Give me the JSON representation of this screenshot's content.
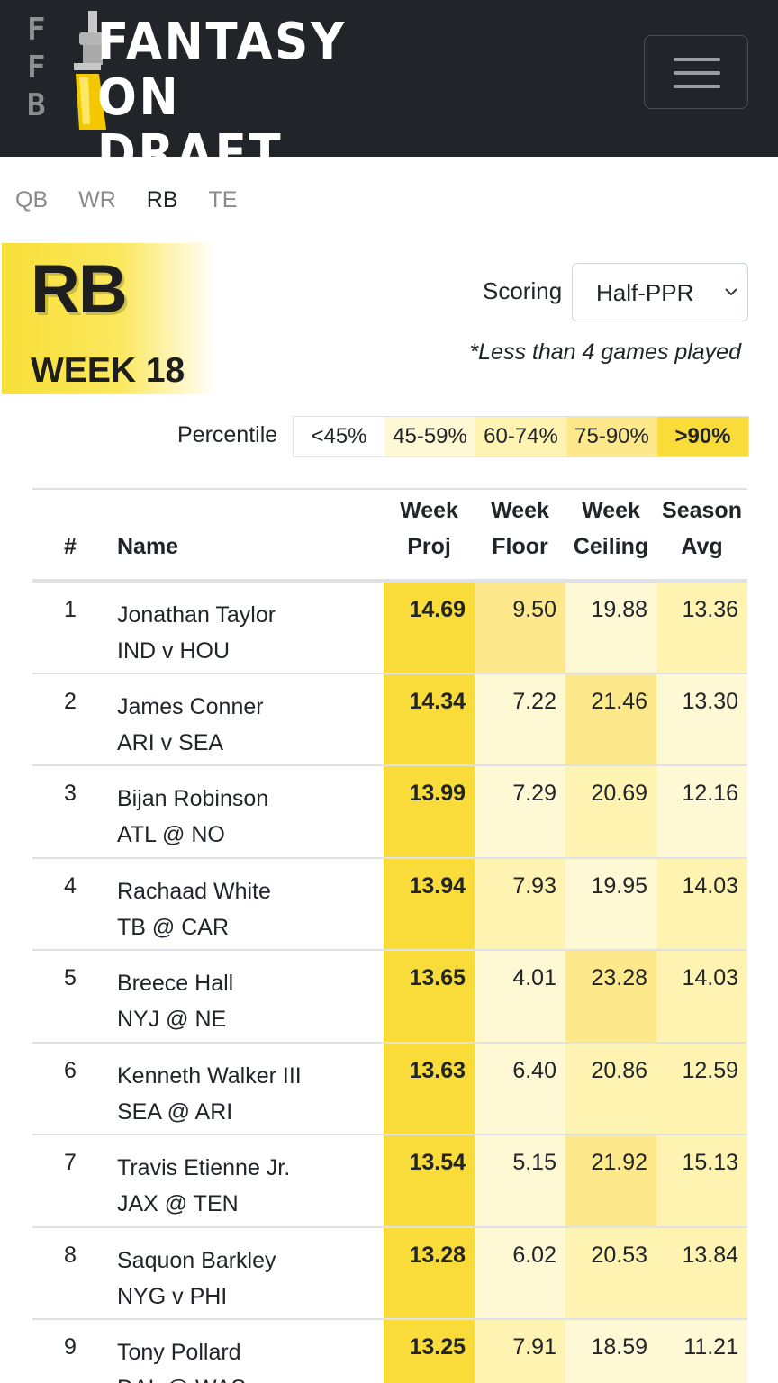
{
  "header": {
    "logo_letters": [
      "F",
      "F",
      "B"
    ],
    "logo_line1": "FANTASY",
    "logo_line2": "ON DRAFT",
    "menu_icon": "hamburger-icon"
  },
  "position_tabs": [
    {
      "label": "QB",
      "active": false
    },
    {
      "label": "WR",
      "active": false
    },
    {
      "label": "RB",
      "active": true
    },
    {
      "label": "TE",
      "active": false
    }
  ],
  "heading": {
    "position": "RB",
    "week": "WEEK 18"
  },
  "scoring": {
    "label": "Scoring",
    "selected": "Half-PPR",
    "icon": "chevron-down-icon"
  },
  "note": "*Less than 4 games played",
  "percentile": {
    "label": "Percentile",
    "bands": [
      "<45%",
      "45-59%",
      "60-74%",
      "75-90%",
      ">90%"
    ],
    "colors": [
      "#ffffff",
      "#fff8d5",
      "#fff3b2",
      "#fde98b",
      "#f9dc3a"
    ]
  },
  "table": {
    "columns": [
      {
        "line1": "",
        "line2": "#"
      },
      {
        "line1": "",
        "line2": "Name"
      },
      {
        "line1": "Week",
        "line2": "Proj"
      },
      {
        "line1": "Week",
        "line2": "Floor"
      },
      {
        "line1": "Week",
        "line2": "Ceiling"
      },
      {
        "line1": "Season",
        "line2": "Avg"
      }
    ],
    "rows": [
      {
        "rank": "1",
        "name": "Jonathan Taylor",
        "matchup": "IND v HOU",
        "proj": "14.69",
        "floor": "9.50",
        "ceiling": "19.88",
        "avg": "13.36",
        "tiers": [
          4,
          3,
          1,
          2
        ]
      },
      {
        "rank": "2",
        "name": "James Conner",
        "matchup": "ARI v SEA",
        "proj": "14.34",
        "floor": "7.22",
        "ceiling": "21.46",
        "avg": "13.30",
        "tiers": [
          4,
          1,
          3,
          1
        ]
      },
      {
        "rank": "3",
        "name": "Bijan Robinson",
        "matchup": "ATL @ NO",
        "proj": "13.99",
        "floor": "7.29",
        "ceiling": "20.69",
        "avg": "12.16",
        "tiers": [
          4,
          1,
          2,
          1
        ]
      },
      {
        "rank": "4",
        "name": "Rachaad White",
        "matchup": "TB @ CAR",
        "proj": "13.94",
        "floor": "7.93",
        "ceiling": "19.95",
        "avg": "14.03",
        "tiers": [
          4,
          2,
          1,
          2
        ]
      },
      {
        "rank": "5",
        "name": "Breece Hall",
        "matchup": "NYJ @ NE",
        "proj": "13.65",
        "floor": "4.01",
        "ceiling": "23.28",
        "avg": "14.03",
        "tiers": [
          4,
          1,
          3,
          2
        ]
      },
      {
        "rank": "6",
        "name": "Kenneth Walker III",
        "matchup": "SEA @ ARI",
        "proj": "13.63",
        "floor": "6.40",
        "ceiling": "20.86",
        "avg": "12.59",
        "tiers": [
          4,
          1,
          2,
          2
        ]
      },
      {
        "rank": "7",
        "name": "Travis Etienne Jr.",
        "matchup": "JAX @ TEN",
        "proj": "13.54",
        "floor": "5.15",
        "ceiling": "21.92",
        "avg": "15.13",
        "tiers": [
          4,
          1,
          3,
          2
        ]
      },
      {
        "rank": "8",
        "name": "Saquon Barkley",
        "matchup": "NYG v PHI",
        "proj": "13.28",
        "floor": "6.02",
        "ceiling": "20.53",
        "avg": "13.84",
        "tiers": [
          4,
          1,
          2,
          2
        ]
      },
      {
        "rank": "9",
        "name": "Tony Pollard",
        "matchup": "DAL @ WAS",
        "proj": "13.25",
        "floor": "7.91",
        "ceiling": "18.59",
        "avg": "11.21",
        "tiers": [
          4,
          2,
          1,
          1
        ]
      }
    ]
  }
}
